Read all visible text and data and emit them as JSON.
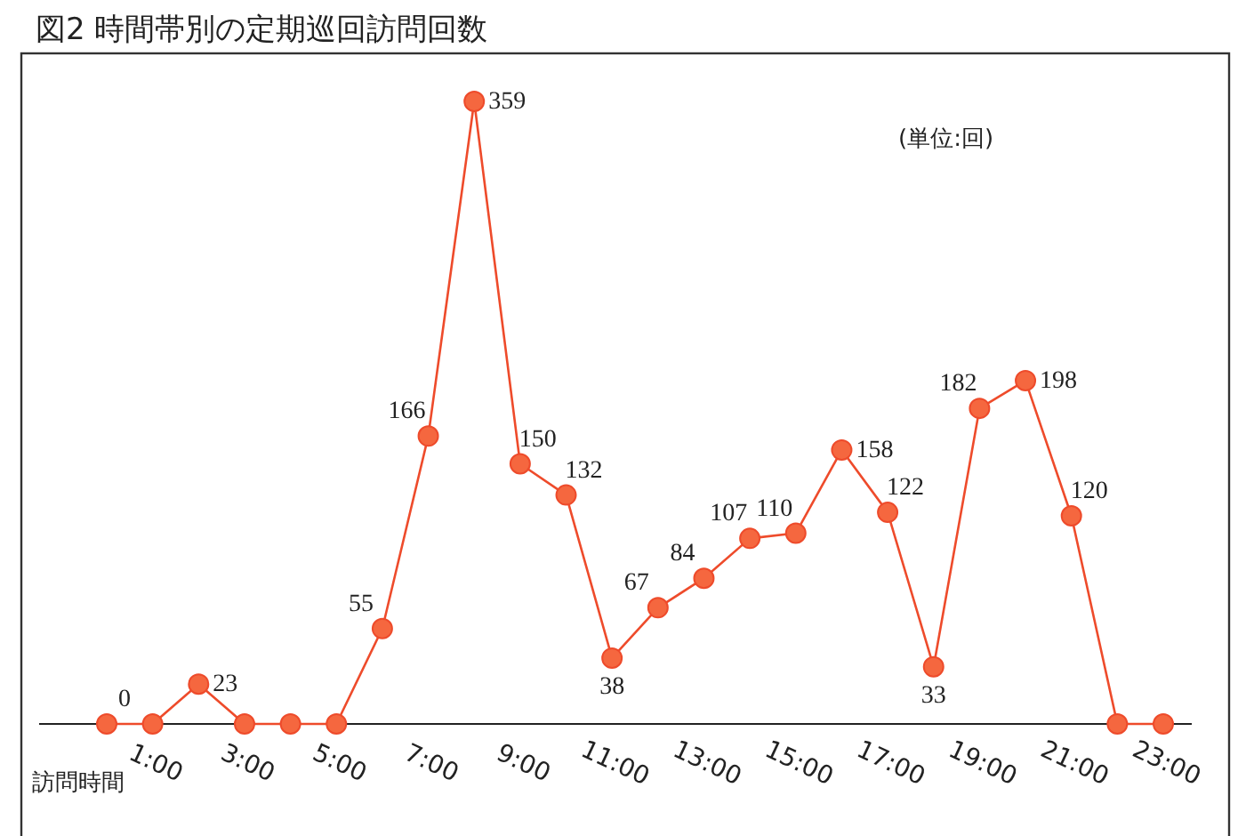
{
  "chart_data": {
    "type": "line",
    "title": "図2 時間帯別の定期巡回訪問回数",
    "xlabel": "訪問時間",
    "annotations": [
      "(単位:回)"
    ],
    "categories": [
      null,
      "1:00",
      null,
      "3:00",
      null,
      "5:00",
      null,
      "7:00",
      null,
      "9:00",
      null,
      "11:00",
      null,
      "13:00",
      null,
      "15:00",
      null,
      "17:00",
      null,
      "19:00",
      null,
      "21:00",
      null,
      "23:00"
    ],
    "series": [
      {
        "color": "#ee4b2b",
        "values": [
          0,
          0,
          23,
          0,
          0,
          0,
          55,
          166,
          359,
          150,
          132,
          38,
          67,
          84,
          107,
          110,
          158,
          122,
          33,
          182,
          198,
          120,
          0,
          0
        ],
        "value_labels": [
          "0",
          null,
          "23",
          null,
          null,
          null,
          "55",
          "166",
          "359",
          "150",
          "132",
          "38",
          "67",
          "84",
          "107",
          "110",
          "158",
          "122",
          "33",
          "182",
          "198",
          "120",
          null,
          null
        ]
      }
    ],
    "marker": "circle"
  }
}
